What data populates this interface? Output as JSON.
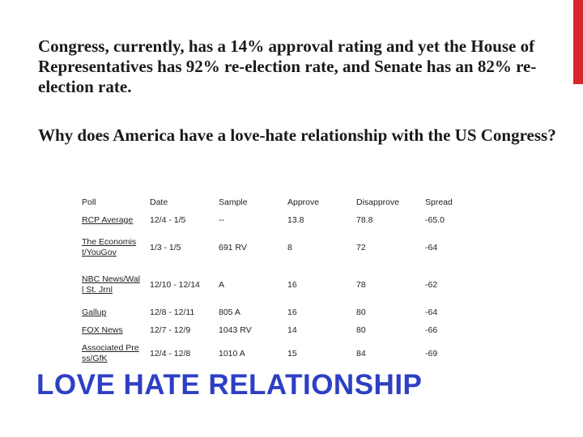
{
  "paragraphs": [
    "Congress, currently, has a 14% approval rating and yet the House of Representatives has 92% re-election rate, and Senate has an 82% re-election rate.",
    "Why does America have a love-hate relationship with the US Congress?"
  ],
  "table": {
    "header": [
      "Poll",
      "Date",
      "Sample",
      "Approve",
      "Disapprove",
      "Spread"
    ],
    "rows": [
      [
        "RCP Average",
        "12/4 - 1/5",
        "--",
        "13.8",
        "78.8",
        "-65.0"
      ],
      [
        "The Economist/YouGov",
        "1/3 - 1/5",
        "691 RV",
        "8",
        "72",
        "-64"
      ],
      [
        "NBC News/Wall St. Jrnl",
        "12/10 - 12/14",
        "A",
        "16",
        "78",
        "-62"
      ],
      [
        "Gallup",
        "12/8 - 12/11",
        "805 A",
        "16",
        "80",
        "-64"
      ],
      [
        "FOX News",
        "12/7 - 12/9",
        "1043 RV",
        "14",
        "80",
        "-66"
      ],
      [
        "Associated Press/GfK",
        "12/4 - 12/8",
        "1010 A",
        "15",
        "84",
        "-69"
      ]
    ]
  },
  "footer": "LOVE HATE RELATIONSHIP"
}
